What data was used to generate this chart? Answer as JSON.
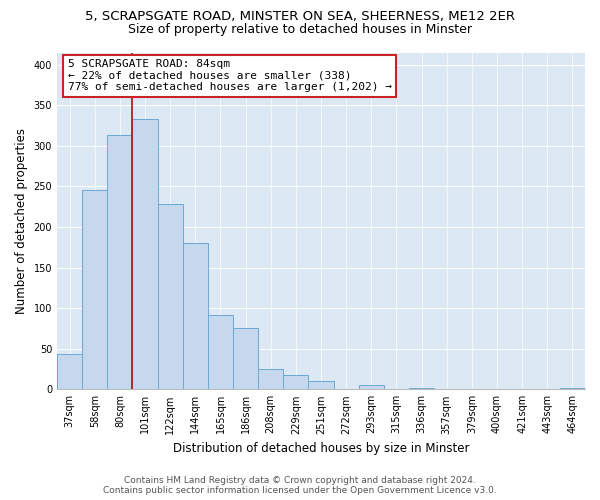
{
  "title_line1": "5, SCRAPSGATE ROAD, MINSTER ON SEA, SHEERNESS, ME12 2ER",
  "title_line2": "Size of property relative to detached houses in Minster",
  "xlabel": "Distribution of detached houses by size in Minster",
  "ylabel": "Number of detached properties",
  "bin_labels": [
    "37sqm",
    "58sqm",
    "80sqm",
    "101sqm",
    "122sqm",
    "144sqm",
    "165sqm",
    "186sqm",
    "208sqm",
    "229sqm",
    "251sqm",
    "272sqm",
    "293sqm",
    "315sqm",
    "336sqm",
    "357sqm",
    "379sqm",
    "400sqm",
    "421sqm",
    "443sqm",
    "464sqm"
  ],
  "bar_heights": [
    43,
    245,
    313,
    333,
    228,
    180,
    91,
    75,
    25,
    18,
    10,
    0,
    5,
    0,
    2,
    0,
    0,
    0,
    0,
    0,
    2
  ],
  "bar_color": "#c5d8ee",
  "bar_edge_color": "#6aaad4",
  "vline_color": "#aa1111",
  "annotation_title": "5 SCRAPSGATE ROAD: 84sqm",
  "annotation_line2": "← 22% of detached houses are smaller (338)",
  "annotation_line3": "77% of semi-detached houses are larger (1,202) →",
  "annotation_box_facecolor": "#ffffff",
  "annotation_box_edgecolor": "#cc2222",
  "ylim": [
    0,
    415
  ],
  "yticks": [
    0,
    50,
    100,
    150,
    200,
    250,
    300,
    350,
    400
  ],
  "bg_color": "#ffffff",
  "plot_bg_color": "#dce9f5",
  "grid_color": "#ffffff",
  "title_fontsize": 9.5,
  "subtitle_fontsize": 9,
  "axis_label_fontsize": 8.5,
  "tick_fontsize": 7,
  "footer_fontsize": 6.5,
  "footer_line1": "Contains HM Land Registry data © Crown copyright and database right 2024.",
  "footer_line2": "Contains public sector information licensed under the Open Government Licence v3.0."
}
